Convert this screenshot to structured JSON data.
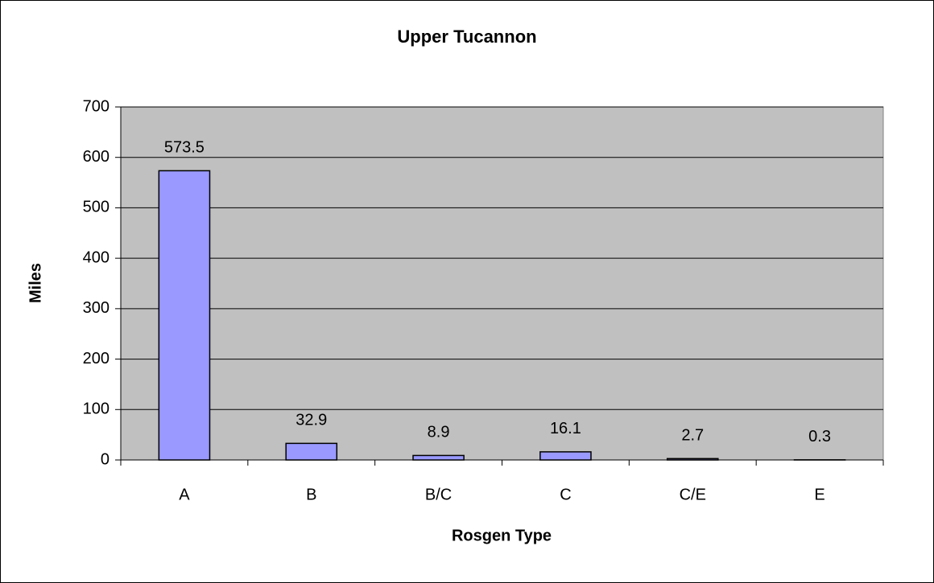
{
  "chart_data": {
    "type": "bar",
    "title": "Upper Tucannon",
    "x_label": "Rosgen Type",
    "y_label": "Miles",
    "categories": [
      "A",
      "B",
      "B/C",
      "C",
      "C/E",
      "E"
    ],
    "values": [
      573.5,
      32.9,
      8.9,
      16.1,
      2.7,
      0.3
    ],
    "color": "#9999ff",
    "plot_background": "#c0c0c0",
    "ylim": [
      0,
      700
    ],
    "yticks": [
      0,
      100,
      200,
      300,
      400,
      500,
      600,
      700
    ],
    "grid": true
  }
}
